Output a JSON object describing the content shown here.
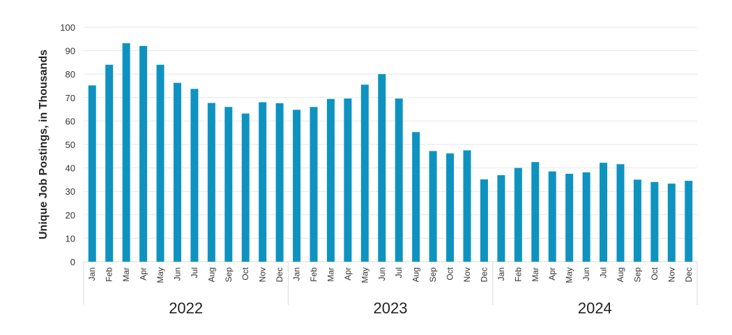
{
  "chart_data": {
    "type": "bar",
    "title": "",
    "xlabel": "",
    "ylabel": "Unique Job Postings, in Thousands",
    "ylim": [
      0,
      100
    ],
    "yticks": [
      0,
      10,
      20,
      30,
      40,
      50,
      60,
      70,
      80,
      90,
      100
    ],
    "grid": true,
    "bar_color": "#0e93c1",
    "groups": [
      {
        "year": "2022",
        "months": [
          "Jan",
          "Feb",
          "Mar",
          "Apr",
          "May",
          "Jun",
          "Jul",
          "Aug",
          "Sep",
          "Oct",
          "Nov",
          "Dec"
        ],
        "values": [
          75.2,
          84.0,
          93.2,
          92.0,
          84.0,
          76.3,
          73.7,
          67.7,
          66.0,
          63.2,
          68.0,
          67.6
        ]
      },
      {
        "year": "2023",
        "months": [
          "Jan",
          "Feb",
          "Mar",
          "Apr",
          "May",
          "Jun",
          "Jul",
          "Aug",
          "Sep",
          "Oct",
          "Nov",
          "Dec"
        ],
        "values": [
          64.8,
          66.0,
          69.4,
          69.6,
          75.5,
          80.0,
          69.6,
          55.3,
          47.2,
          46.2,
          47.5,
          35.1
        ]
      },
      {
        "year": "2024",
        "months": [
          "Jan",
          "Feb",
          "Mar",
          "Apr",
          "May",
          "Jun",
          "Jul",
          "Aug",
          "Sep",
          "Oct",
          "Nov",
          "Dec"
        ],
        "values": [
          36.9,
          40.0,
          42.5,
          38.5,
          37.5,
          38.1,
          42.2,
          41.6,
          35.0,
          34.0,
          33.3,
          34.5
        ]
      }
    ]
  }
}
